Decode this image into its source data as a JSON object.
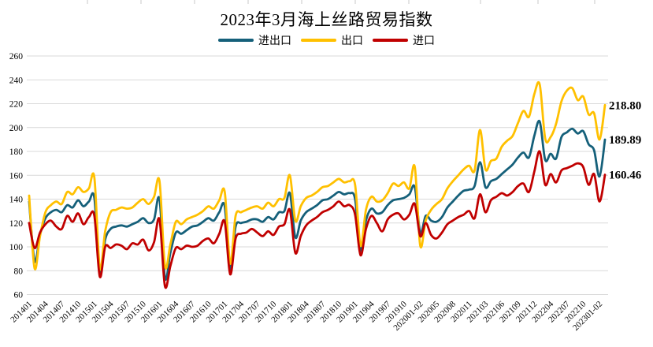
{
  "page": {
    "background": "#FFFFFF",
    "gridline_color": "#D9D9D9"
  },
  "header": {
    "title": "2023年3月海上丝路贸易指数"
  },
  "chart_data": {
    "type": "line",
    "title": "2023年3月海上丝路贸易指数",
    "smoothed": true,
    "grid": "horizontal",
    "legend_position": "top",
    "xlabel": "",
    "ylabel": "",
    "ylim": [
      60,
      260
    ],
    "y_ticks": [
      60,
      80,
      100,
      120,
      140,
      160,
      180,
      200,
      220,
      240,
      260
    ],
    "x_tick_every": 3,
    "categories": [
      "201401",
      "201402",
      "201403",
      "201404",
      "201405",
      "201406",
      "201407",
      "201408",
      "201409",
      "201410",
      "201411",
      "201412",
      "201501",
      "201502",
      "201503",
      "201504",
      "201505",
      "201506",
      "201507",
      "201508",
      "201509",
      "201510",
      "201511",
      "201512",
      "201601",
      "201602",
      "201603",
      "201604",
      "201605",
      "201606",
      "201607",
      "201608",
      "201609",
      "201610",
      "201611",
      "201612",
      "201701",
      "201702",
      "201703",
      "201704",
      "201705",
      "201706",
      "201707",
      "201708",
      "201709",
      "201710",
      "201711",
      "201712",
      "201801",
      "201802",
      "201803",
      "201804",
      "201805",
      "201806",
      "201807",
      "201808",
      "201809",
      "201810",
      "201811",
      "201812",
      "201901",
      "201902",
      "201903",
      "201904",
      "201905",
      "201906",
      "201907",
      "201908",
      "201909",
      "201910",
      "201911",
      "201912",
      "202001-02",
      "202003",
      "202004",
      "202005",
      "202006",
      "202007",
      "202008",
      "202009",
      "202010",
      "202011",
      "202012",
      "202101-02",
      "202103",
      "202104",
      "202105",
      "202106",
      "202107",
      "202108",
      "202109",
      "202110",
      "202111",
      "202112",
      "202201-02",
      "202203",
      "202204",
      "202205",
      "202206",
      "202207",
      "202208",
      "202209",
      "202210",
      "202211",
      "202212",
      "202301-02",
      "202303"
    ],
    "series": [
      {
        "name": "进出口",
        "key": "import-export",
        "color": "#15607A",
        "values": [
          138,
          88,
          110,
          124,
          129,
          131,
          129,
          135,
          133,
          139,
          134,
          138,
          141,
          78,
          106,
          115,
          117,
          118,
          117,
          119,
          121,
          124,
          120,
          123,
          140,
          74,
          95,
          112,
          111,
          114,
          117,
          118,
          121,
          124,
          122,
          129,
          134,
          81,
          117,
          120,
          121,
          123,
          123,
          121,
          125,
          123,
          129,
          130,
          145,
          108,
          122,
          129,
          132,
          135,
          139,
          140,
          143,
          146,
          144,
          145,
          140,
          97,
          122,
          132,
          128,
          129,
          135,
          139,
          140,
          141,
          144,
          150,
          112,
          126,
          122,
          121,
          125,
          133,
          138,
          143,
          147,
          148,
          151,
          171,
          150,
          155,
          157,
          161,
          165,
          169,
          175,
          179,
          175,
          193,
          205,
          173,
          178,
          174,
          192,
          196,
          199,
          195,
          197,
          186,
          181,
          159,
          189.89
        ]
      },
      {
        "name": "出口",
        "key": "export",
        "color": "#FFC000",
        "values": [
          143,
          82,
          109,
          129,
          135,
          138,
          136,
          146,
          144,
          150,
          146,
          149,
          158,
          82,
          113,
          129,
          131,
          133,
          132,
          133,
          137,
          140,
          136,
          142,
          155,
          84,
          102,
          121,
          119,
          123,
          125,
          127,
          130,
          134,
          132,
          139,
          146,
          86,
          126,
          129,
          131,
          133,
          134,
          132,
          137,
          134,
          140,
          141,
          160,
          122,
          134,
          141,
          143,
          146,
          150,
          151,
          154,
          157,
          154,
          155,
          152,
          101,
          131,
          142,
          138,
          139,
          145,
          153,
          151,
          154,
          149,
          167,
          101,
          122,
          131,
          136,
          140,
          149,
          155,
          160,
          165,
          168,
          164,
          198,
          165,
          172,
          174,
          184,
          189,
          193,
          204,
          214,
          209,
          228,
          236,
          191,
          192,
          203,
          222,
          231,
          233,
          223,
          226,
          211,
          212,
          190,
          218.8
        ]
      },
      {
        "name": "进口",
        "key": "import",
        "color": "#C00000",
        "values": [
          120,
          99,
          112,
          119,
          122,
          117,
          115,
          126,
          121,
          128,
          119,
          125,
          126,
          75,
          100,
          99,
          102,
          101,
          98,
          103,
          102,
          106,
          97,
          104,
          123,
          67,
          84,
          99,
          98,
          101,
          100,
          101,
          105,
          107,
          103,
          111,
          121,
          77,
          107,
          111,
          112,
          115,
          112,
          109,
          113,
          110,
          117,
          119,
          131,
          95,
          109,
          118,
          122,
          125,
          129,
          131,
          134,
          138,
          134,
          135,
          127,
          93,
          115,
          126,
          120,
          113,
          123,
          127,
          128,
          123,
          127,
          136,
          109,
          120,
          110,
          107,
          112,
          119,
          122,
          125,
          127,
          130,
          124,
          144,
          129,
          139,
          142,
          145,
          143,
          146,
          151,
          153,
          146,
          163,
          180,
          152,
          161,
          154,
          164,
          166,
          168,
          170,
          167,
          152,
          161,
          138,
          160.46
        ]
      }
    ],
    "end_labels": [
      {
        "series": "出口",
        "text": "218.80"
      },
      {
        "series": "进出口",
        "text": "189.89"
      },
      {
        "series": "进口",
        "text": "160.46"
      }
    ]
  }
}
